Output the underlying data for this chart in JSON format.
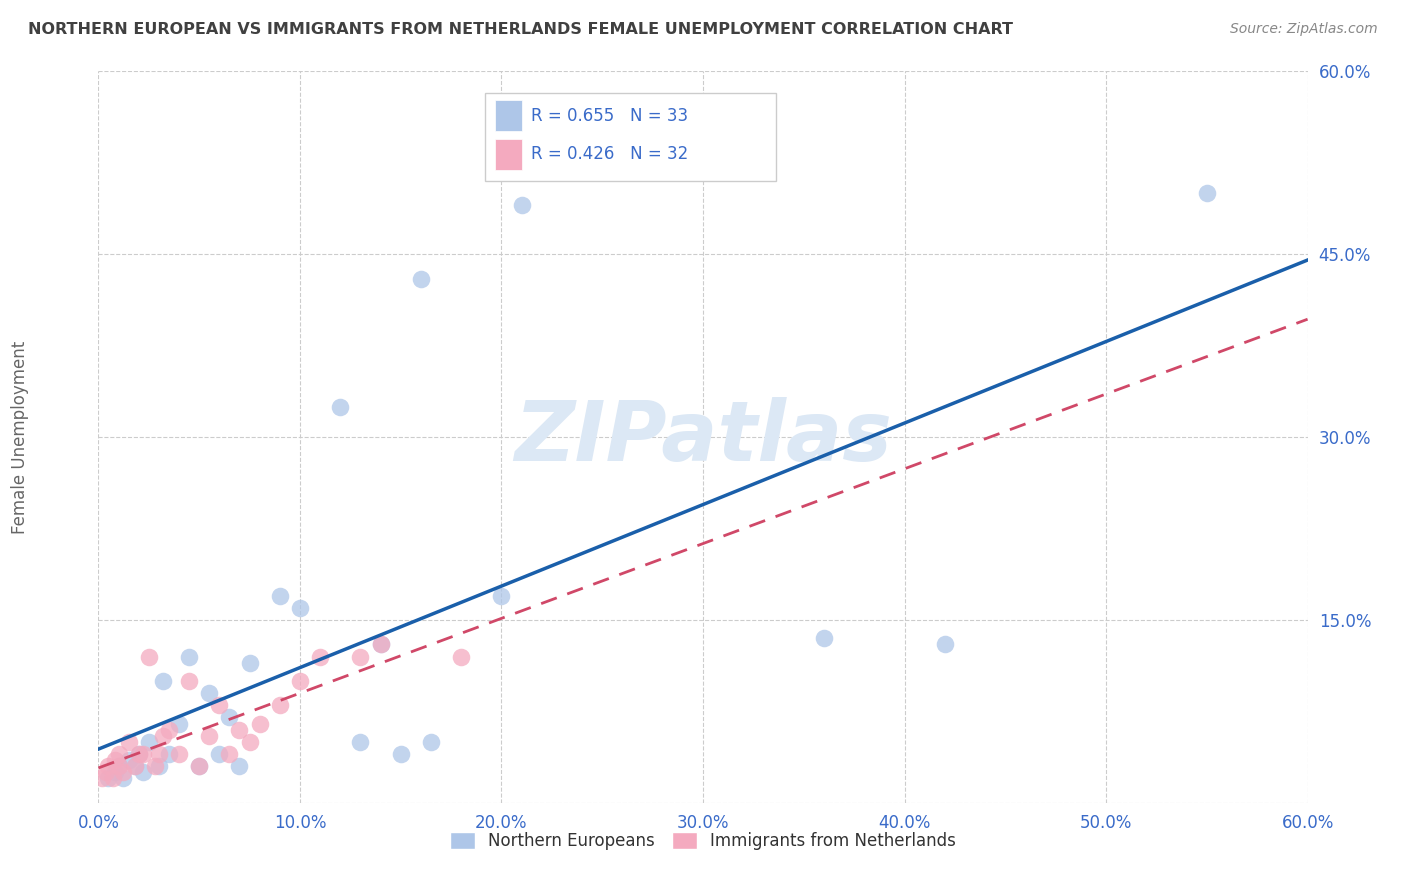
{
  "title": "NORTHERN EUROPEAN VS IMMIGRANTS FROM NETHERLANDS FEMALE UNEMPLOYMENT CORRELATION CHART",
  "source": "Source: ZipAtlas.com",
  "ylabel": "Female Unemployment",
  "xlim": [
    0.0,
    0.6
  ],
  "ylim": [
    0.0,
    0.6
  ],
  "xtick_vals": [
    0.0,
    0.1,
    0.2,
    0.3,
    0.4,
    0.5,
    0.6
  ],
  "ytick_vals": [
    0.0,
    0.15,
    0.3,
    0.45,
    0.6
  ],
  "xtick_labels": [
    "0.0%",
    "10.0%",
    "20.0%",
    "30.0%",
    "40.0%",
    "50.0%",
    "60.0%"
  ],
  "ytick_labels": [
    "",
    "15.0%",
    "30.0%",
    "45.0%",
    "60.0%"
  ],
  "R_blue": 0.655,
  "N_blue": 33,
  "R_pink": 0.426,
  "N_pink": 32,
  "legend_labels": [
    "Northern Europeans",
    "Immigrants from Netherlands"
  ],
  "blue_scatter_x": [
    0.005,
    0.008,
    0.01,
    0.012,
    0.015,
    0.018,
    0.02,
    0.022,
    0.025,
    0.03,
    0.032,
    0.035,
    0.04,
    0.045,
    0.05,
    0.055,
    0.06,
    0.065,
    0.07,
    0.075,
    0.09,
    0.1,
    0.12,
    0.13,
    0.14,
    0.15,
    0.16,
    0.165,
    0.2,
    0.21,
    0.36,
    0.42,
    0.55
  ],
  "blue_scatter_y": [
    0.02,
    0.025,
    0.03,
    0.02,
    0.035,
    0.03,
    0.04,
    0.025,
    0.05,
    0.03,
    0.1,
    0.04,
    0.065,
    0.12,
    0.03,
    0.09,
    0.04,
    0.07,
    0.03,
    0.115,
    0.17,
    0.16,
    0.325,
    0.05,
    0.13,
    0.04,
    0.43,
    0.05,
    0.17,
    0.49,
    0.135,
    0.13,
    0.5
  ],
  "pink_scatter_x": [
    0.002,
    0.004,
    0.005,
    0.007,
    0.008,
    0.01,
    0.01,
    0.012,
    0.015,
    0.018,
    0.02,
    0.022,
    0.025,
    0.028,
    0.03,
    0.032,
    0.035,
    0.04,
    0.045,
    0.05,
    0.055,
    0.06,
    0.065,
    0.07,
    0.075,
    0.08,
    0.09,
    0.1,
    0.11,
    0.13,
    0.14,
    0.18
  ],
  "pink_scatter_y": [
    0.02,
    0.025,
    0.03,
    0.02,
    0.035,
    0.03,
    0.04,
    0.025,
    0.05,
    0.03,
    0.04,
    0.04,
    0.12,
    0.03,
    0.04,
    0.055,
    0.06,
    0.04,
    0.1,
    0.03,
    0.055,
    0.08,
    0.04,
    0.06,
    0.05,
    0.065,
    0.08,
    0.1,
    0.12,
    0.12,
    0.13,
    0.12
  ],
  "blue_color": "#aec6e8",
  "blue_line_color": "#1a5faa",
  "pink_color": "#f4aabf",
  "pink_line_color": "#d04868",
  "background_color": "#ffffff",
  "grid_color": "#cccccc",
  "title_color": "#404040",
  "axis_label_color": "#666666",
  "tick_color": "#3a6bc9",
  "watermark": "ZIPatlas",
  "watermark_color": "#dce8f5",
  "legend_text_color": "#333333",
  "legend_val_color": "#3a6bc9"
}
